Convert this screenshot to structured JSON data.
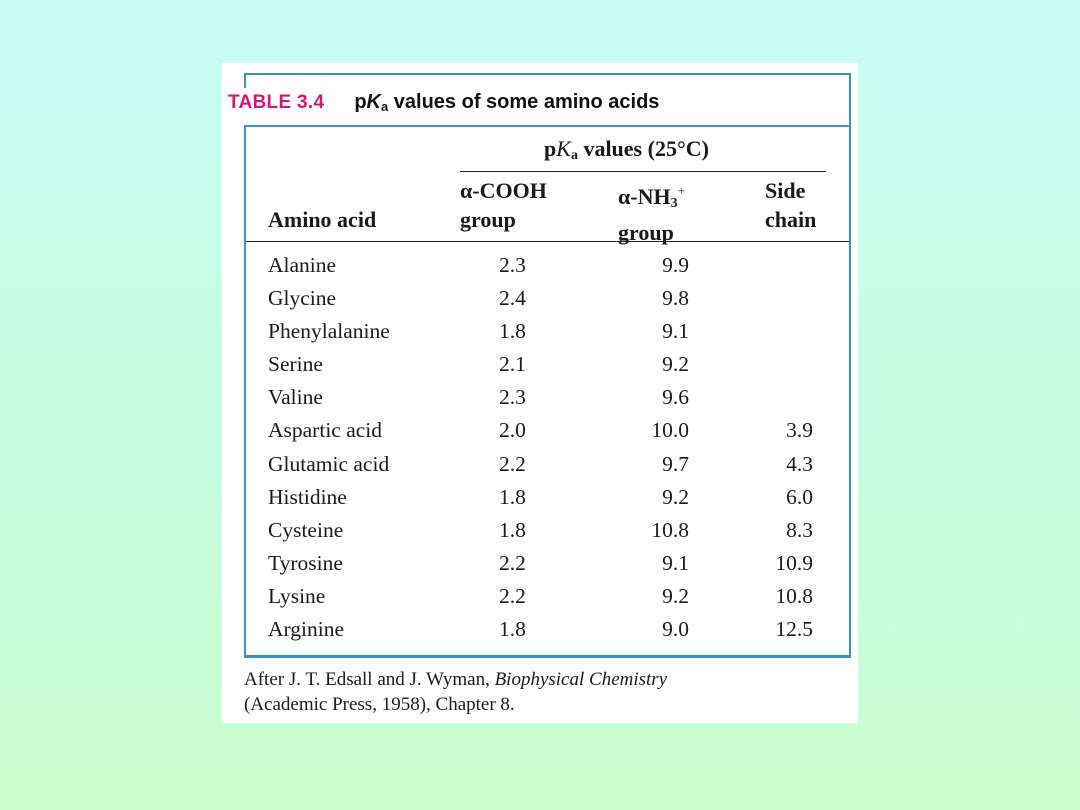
{
  "table": {
    "number": "TABLE 3.4",
    "title_prefix": "p",
    "title_k": "K",
    "title_sub": "a",
    "title_rest": " values of some amino acids",
    "group_header": {
      "prefix": "p",
      "k": "K",
      "sub": "a",
      "rest": " values (25°C)"
    },
    "columns": {
      "name_label": "Amino acid",
      "cooh_line1": "α-COOH",
      "cooh_line2": "group",
      "nh_line1_main": "α-NH",
      "nh_line1_sub": "3",
      "nh_line1_sup": "+",
      "nh_line2": "group",
      "side_line1": "Side",
      "side_line2": "chain"
    },
    "rows": [
      {
        "name": "Alanine",
        "cooh": "2.3",
        "nh3": "9.9",
        "side": ""
      },
      {
        "name": "Glycine",
        "cooh": "2.4",
        "nh3": "9.8",
        "side": ""
      },
      {
        "name": "Phenylalanine",
        "cooh": "1.8",
        "nh3": "9.1",
        "side": ""
      },
      {
        "name": "Serine",
        "cooh": "2.1",
        "nh3": "9.2",
        "side": ""
      },
      {
        "name": "Valine",
        "cooh": "2.3",
        "nh3": "9.6",
        "side": ""
      },
      {
        "name": "Aspartic acid",
        "cooh": "2.0",
        "nh3": "10.0",
        "side": "3.9"
      },
      {
        "name": "Glutamic acid",
        "cooh": "2.2",
        "nh3": "9.7",
        "side": "4.3"
      },
      {
        "name": "Histidine",
        "cooh": "1.8",
        "nh3": "9.2",
        "side": "6.0"
      },
      {
        "name": "Cysteine",
        "cooh": "1.8",
        "nh3": "10.8",
        "side": "8.3"
      },
      {
        "name": "Tyrosine",
        "cooh": "2.2",
        "nh3": "9.1",
        "side": "10.9"
      },
      {
        "name": "Lysine",
        "cooh": "2.2",
        "nh3": "9.2",
        "side": "10.8"
      },
      {
        "name": "Arginine",
        "cooh": "1.8",
        "nh3": "9.0",
        "side": "12.5"
      }
    ]
  },
  "footnote": {
    "part1": "After J. T. Edsall and J. Wyman, ",
    "book": "Biophysical Chemistry",
    "line2": "(Academic Press, 1958), Chapter 8."
  },
  "colors": {
    "accent_blue": "#3a93c8",
    "table_number": "#d0177b"
  }
}
